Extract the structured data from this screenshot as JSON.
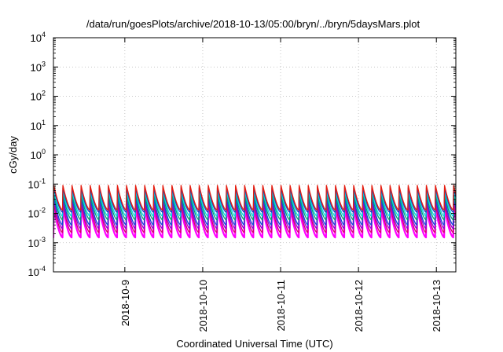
{
  "chart_data": {
    "type": "line",
    "title": "/data/run/goesPlots/archive/2018-10-13/05:00/bryn/../bryn/5daysMars.plot",
    "xlabel": "Coordinated Universal Time (UTC)",
    "ylabel": "cGy/day",
    "yscale": "log",
    "ylim": [
      0.0001,
      10000
    ],
    "y_ticks": [
      {
        "value": 0.0001,
        "base": "10",
        "exp": "-4"
      },
      {
        "value": 0.001,
        "base": "10",
        "exp": "-3"
      },
      {
        "value": 0.01,
        "base": "10",
        "exp": "-2"
      },
      {
        "value": 0.1,
        "base": "10",
        "exp": "-1"
      },
      {
        "value": 1,
        "base": "10",
        "exp": "0"
      },
      {
        "value": 10,
        "base": "10",
        "exp": "1"
      },
      {
        "value": 100,
        "base": "10",
        "exp": "2"
      },
      {
        "value": 1000,
        "base": "10",
        "exp": "3"
      },
      {
        "value": 10000,
        "base": "10",
        "exp": "4"
      }
    ],
    "xlim": [
      "2018-10-08T02:00",
      "2018-10-13T06:00"
    ],
    "x_ticks": [
      {
        "value": "2018-10-09T00:00",
        "label": "2018-10-9"
      },
      {
        "value": "2018-10-10T00:00",
        "label": "2018-10-10"
      },
      {
        "value": "2018-10-11T00:00",
        "label": "2018-10-11"
      },
      {
        "value": "2018-10-12T00:00",
        "label": "2018-10-12"
      },
      {
        "value": "2018-10-13T00:00",
        "label": "2018-10-13"
      }
    ],
    "grid": true,
    "period_hours": 2.8,
    "series": [
      {
        "color": "#ff00ff",
        "peak": 0.015,
        "trough": 0.0015
      },
      {
        "color": "#d4006a",
        "peak": 0.02,
        "trough": 0.0022
      },
      {
        "color": "#9400d3",
        "peak": 0.028,
        "trough": 0.003
      },
      {
        "color": "#0f4bd6",
        "peak": 0.035,
        "trough": 0.004
      },
      {
        "color": "#009e73",
        "peak": 0.045,
        "trough": 0.006
      },
      {
        "color": "#00d8e0",
        "peak": 0.06,
        "trough": 0.008
      },
      {
        "color": "#1f3fbf",
        "peak": 0.075,
        "trough": 0.011
      },
      {
        "color": "#e51e10",
        "peak": 0.09,
        "trough": 0.013
      }
    ]
  }
}
